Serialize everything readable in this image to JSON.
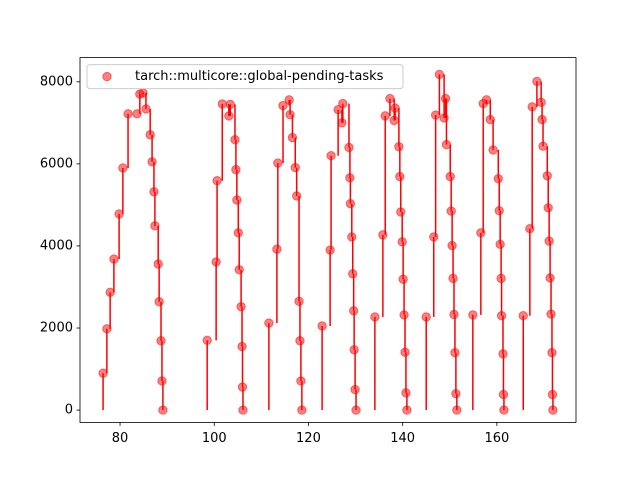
{
  "chart_data": {
    "type": "scatter",
    "series": [
      {
        "name": "tarch::multicore::global-pending-tasks",
        "color": "#ff0000",
        "x": [
          76.4,
          77.2,
          77.9,
          78.7,
          79.8,
          80.6,
          81.7,
          83.6,
          84.2,
          84.9,
          85.5,
          86.4,
          86.8,
          87.2,
          87.4,
          88.1,
          88.3,
          88.7,
          88.9,
          89.1,
          98.5,
          100.4,
          100.6,
          101.7,
          103.1,
          103.4,
          104.4,
          104.6,
          104.8,
          105.1,
          105.3,
          105.7,
          105.9,
          106.0,
          106.1,
          111.6,
          113.3,
          113.5,
          114.6,
          115.9,
          116.1,
          116.6,
          117.2,
          117.5,
          118.0,
          118.2,
          118.4,
          118.6,
          122.9,
          124.6,
          124.8,
          126.3,
          127.1,
          127.3,
          128.6,
          128.8,
          128.9,
          129.2,
          129.4,
          129.6,
          129.7,
          129.9,
          130.1,
          134.1,
          135.8,
          136.3,
          137.3,
          138.2,
          138.4,
          139.2,
          139.4,
          139.6,
          139.9,
          140.1,
          140.3,
          140.5,
          140.7,
          140.9,
          145.0,
          146.6,
          147.0,
          147.8,
          148.8,
          149.1,
          149.3,
          150.1,
          150.3,
          150.5,
          150.7,
          150.9,
          151.1,
          151.3,
          151.5,
          154.9,
          156.6,
          157.1,
          157.8,
          158.6,
          159.2,
          160.3,
          160.5,
          160.7,
          160.9,
          161.0,
          161.3,
          161.4,
          161.5,
          165.6,
          167.0,
          167.5,
          168.5,
          169.4,
          169.6,
          169.8,
          170.7,
          170.9,
          171.1,
          171.3,
          171.5,
          171.7,
          171.8,
          171.9
        ],
        "values": [
          900,
          1980,
          2870,
          3680,
          4780,
          5900,
          7220,
          7220,
          7700,
          7730,
          7340,
          6710,
          6050,
          5320,
          4490,
          3560,
          2640,
          1690,
          710,
          0,
          1700,
          3610,
          5590,
          7460,
          7170,
          7450,
          6590,
          5860,
          5120,
          4320,
          3420,
          2520,
          1550,
          560,
          0,
          2120,
          3920,
          6020,
          7420,
          7560,
          7200,
          6640,
          5910,
          5220,
          2650,
          1690,
          710,
          0,
          2050,
          3900,
          6200,
          7320,
          7000,
          7470,
          6400,
          5660,
          5030,
          4220,
          3320,
          2420,
          1470,
          500,
          0,
          2270,
          4270,
          7170,
          7590,
          7060,
          7360,
          6420,
          5690,
          4830,
          4100,
          3190,
          2320,
          1410,
          420,
          0,
          2270,
          4220,
          7190,
          8180,
          7120,
          7590,
          6470,
          5690,
          4850,
          4010,
          3210,
          2330,
          1400,
          400,
          0,
          2320,
          4320,
          7470,
          7560,
          7080,
          6340,
          5640,
          4860,
          4040,
          3210,
          2300,
          1370,
          380,
          0,
          2300,
          4420,
          7390,
          8010,
          7500,
          7080,
          6430,
          5710,
          4930,
          4120,
          3220,
          2340,
          1400,
          380,
          0
        ]
      }
    ],
    "xlim": [
      71.5,
      176.8
    ],
    "xticks": [
      80,
      100,
      120,
      140,
      160
    ],
    "ylim": [
      -300,
      8590
    ],
    "yticks": [
      0,
      2000,
      4000,
      6000,
      8000
    ],
    "legend": "upper left"
  }
}
